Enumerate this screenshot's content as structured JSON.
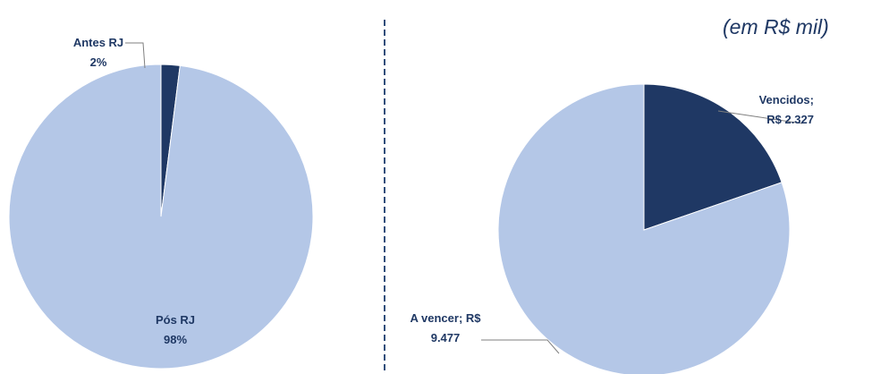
{
  "unit_note": "(em R$ mil)",
  "colors": {
    "dark": "#1f3864",
    "light": "#b4c7e7",
    "divider": "#2e4d7a",
    "leader": "#7f7f7f"
  },
  "chart_data": [
    {
      "type": "pie",
      "slices": [
        {
          "label_lines": [
            "Antes RJ",
            "2%"
          ],
          "value": 2,
          "color": "#1f3864"
        },
        {
          "label_lines": [
            "Pós RJ",
            "98%"
          ],
          "value": 98,
          "color": "#b4c7e7"
        }
      ]
    },
    {
      "type": "pie",
      "slices": [
        {
          "label_lines": [
            "Vencidos;",
            "R$ 2.327"
          ],
          "value": 2327,
          "color": "#1f3864"
        },
        {
          "label_lines": [
            "A vencer; R$",
            "9.477"
          ],
          "value": 9477,
          "color": "#b4c7e7"
        }
      ]
    }
  ]
}
